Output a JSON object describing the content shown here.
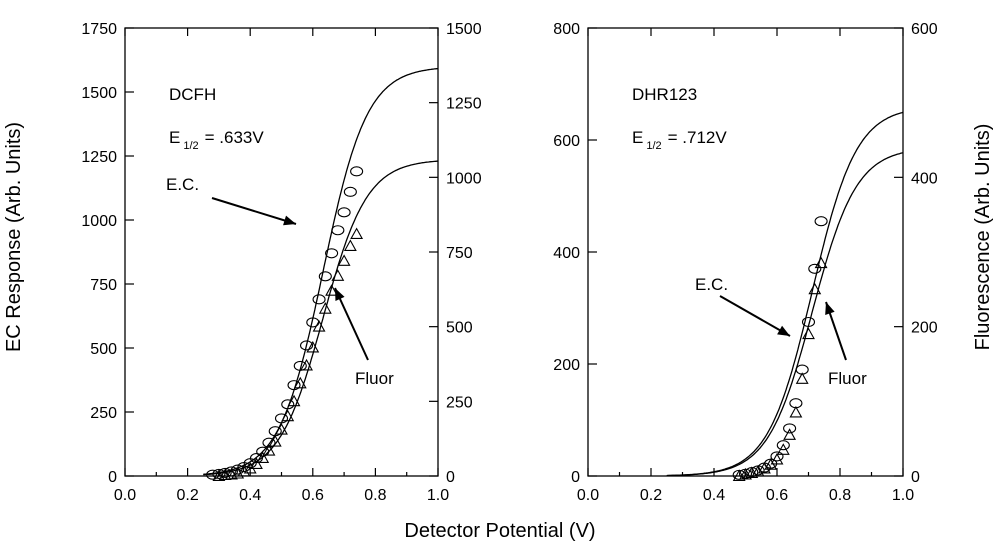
{
  "xlabel": "Detector Potential (V)",
  "ylabel_left": "EC Response (Arb. Units)",
  "ylabel_right": "Fluorescence (Arb. Units)",
  "chart_data": [
    {
      "type": "scatter",
      "compound": "DCFH",
      "half_wave_label": "E",
      "half_wave_sub": "1/2",
      "half_wave_value": "= .633V",
      "label_ec": "E.C.",
      "label_fluor": "Fluor",
      "xlim": [
        0.0,
        1.0
      ],
      "x_ticks": [
        "0.0",
        "0.2",
        "0.4",
        "0.6",
        "0.8",
        "1.0"
      ],
      "ylim_left": [
        0,
        1750
      ],
      "y_ticks_left": [
        "0",
        "250",
        "500",
        "750",
        "1000",
        "1250",
        "1500",
        "1750"
      ],
      "ylim_right": [
        0,
        1500
      ],
      "y_ticks_right": [
        "0",
        "250",
        "500",
        "750",
        "1000",
        "1250",
        "1500"
      ],
      "e_half": 0.633,
      "series": [
        {
          "marker": "circle",
          "axis": "left",
          "fit_max": 1600,
          "x": [
            0.28,
            0.3,
            0.32,
            0.34,
            0.36,
            0.38,
            0.4,
            0.42,
            0.44,
            0.46,
            0.48,
            0.5,
            0.52,
            0.54,
            0.56,
            0.58,
            0.6,
            0.62,
            0.64,
            0.66,
            0.68,
            0.7,
            0.72,
            0.74
          ],
          "y": [
            5,
            8,
            12,
            18,
            25,
            35,
            50,
            70,
            95,
            130,
            175,
            225,
            280,
            355,
            430,
            510,
            600,
            690,
            780,
            870,
            960,
            1030,
            1110,
            1190
          ]
        },
        {
          "marker": "triangle",
          "axis": "right",
          "fit_max": 1060,
          "x": [
            0.3,
            0.32,
            0.34,
            0.36,
            0.38,
            0.4,
            0.42,
            0.44,
            0.46,
            0.48,
            0.5,
            0.52,
            0.54,
            0.56,
            0.58,
            0.6,
            0.62,
            0.64,
            0.66,
            0.68,
            0.7,
            0.72,
            0.74
          ],
          "y": [
            0,
            3,
            5,
            8,
            15,
            25,
            40,
            60,
            85,
            115,
            155,
            200,
            250,
            310,
            370,
            430,
            500,
            560,
            620,
            670,
            720,
            770,
            810
          ]
        }
      ]
    },
    {
      "type": "scatter",
      "compound": "DHR123",
      "half_wave_label": "E",
      "half_wave_sub": "1/2",
      "half_wave_value": "= .712V",
      "label_ec": "E.C.",
      "label_fluor": "Fluor",
      "xlim": [
        0.0,
        1.0
      ],
      "x_ticks": [
        "0.0",
        "0.2",
        "0.4",
        "0.6",
        "0.8",
        "1.0"
      ],
      "ylim_left": [
        0,
        800
      ],
      "y_ticks_left": [
        "0",
        "200",
        "400",
        "600",
        "800"
      ],
      "ylim_right": [
        0,
        600
      ],
      "y_ticks_right": [
        "0",
        "200",
        "400",
        "600"
      ],
      "e_half": 0.712,
      "series": [
        {
          "marker": "circle",
          "axis": "left",
          "fit_max": 660,
          "x": [
            0.48,
            0.5,
            0.52,
            0.54,
            0.56,
            0.58,
            0.6,
            0.62,
            0.64,
            0.66,
            0.68,
            0.7,
            0.72,
            0.74
          ],
          "y": [
            2,
            4,
            7,
            10,
            15,
            22,
            35,
            55,
            85,
            130,
            190,
            275,
            370,
            455
          ]
        },
        {
          "marker": "triangle",
          "axis": "right",
          "fit_max": 440,
          "x": [
            0.48,
            0.5,
            0.52,
            0.54,
            0.56,
            0.58,
            0.6,
            0.62,
            0.64,
            0.66,
            0.68,
            0.7,
            0.72,
            0.74
          ],
          "y": [
            0,
            2,
            4,
            6,
            10,
            15,
            22,
            35,
            55,
            85,
            130,
            190,
            250,
            285
          ]
        }
      ]
    }
  ]
}
